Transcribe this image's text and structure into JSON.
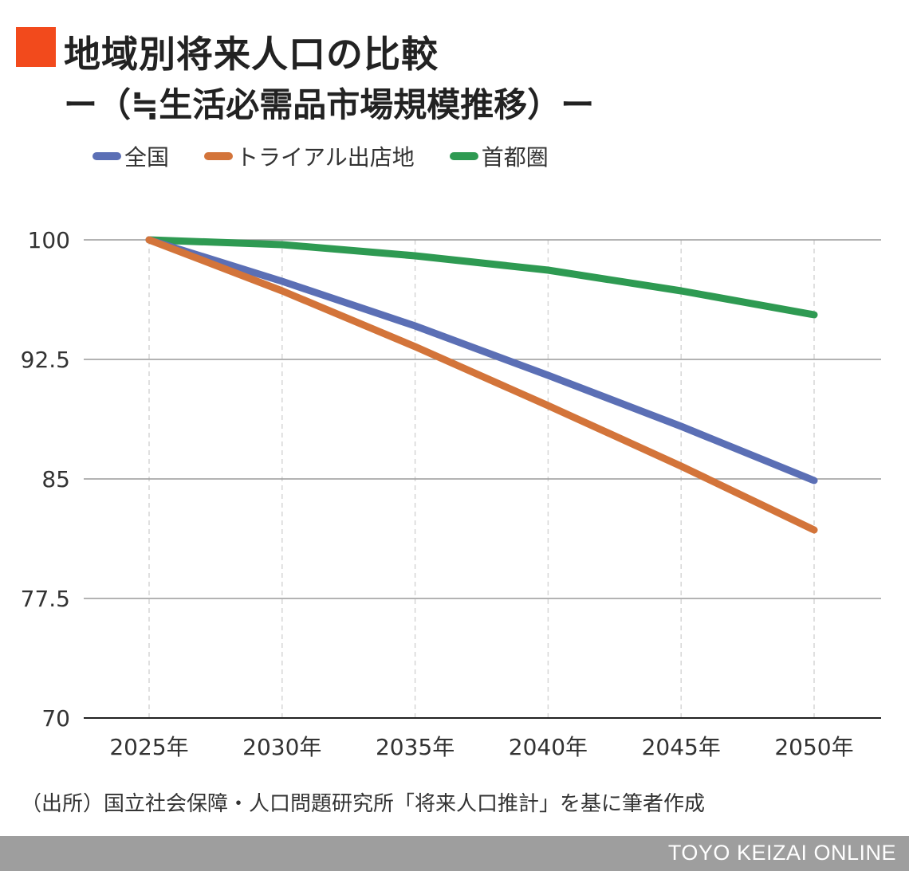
{
  "header": {
    "title": "地域別将来人口の比較",
    "subtitle": "ー（≒生活必需品市場規模推移）ー",
    "mark_color": "#f24a1c"
  },
  "chart_data": {
    "type": "line",
    "categories": [
      "2025年",
      "2030年",
      "2035年",
      "2040年",
      "2045年",
      "2050年"
    ],
    "series": [
      {
        "name": "全国",
        "color": "#5b6fb5",
        "values": [
          100,
          97.4,
          94.6,
          91.5,
          88.3,
          84.9
        ]
      },
      {
        "name": "トライアル出店地",
        "color": "#d3743a",
        "values": [
          100,
          96.8,
          93.3,
          89.6,
          85.8,
          81.8
        ]
      },
      {
        "name": "首都圏",
        "color": "#2e9a52",
        "values": [
          100,
          99.7,
          99.0,
          98.1,
          96.8,
          95.3
        ]
      }
    ],
    "yticks": [
      "100",
      "92.5",
      "85",
      "77.5",
      "70"
    ],
    "ylim": [
      70,
      100
    ],
    "grid": true,
    "legend": "top-left"
  },
  "source": "（出所）国立社会保障・人口問題研究所「将来人口推計」を基に筆者作成",
  "footer": {
    "brand": "TOYO KEIZAI ONLINE"
  }
}
